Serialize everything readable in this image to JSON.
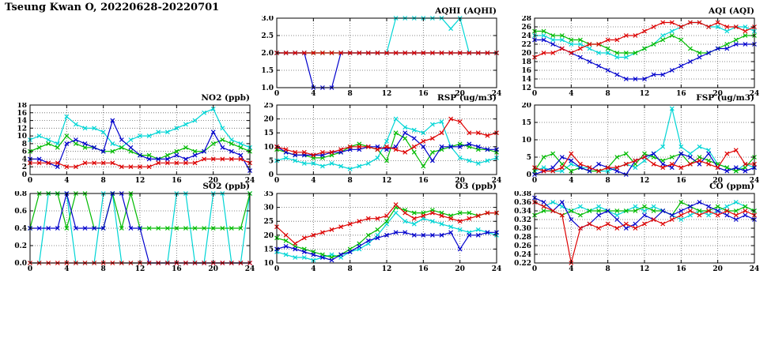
{
  "page": {
    "title": "Tseung Kwan O, 20220628-20220701"
  },
  "palette": {
    "red": "#dd0000",
    "green": "#00bb00",
    "blue": "#0000cc",
    "cyan": "#00d5d5"
  },
  "axes": {
    "xlim": [
      0,
      24
    ],
    "xticks": [
      0,
      4,
      8,
      12,
      16,
      20,
      24
    ],
    "xtick_labels": [
      "0",
      "4",
      "8",
      "12",
      "16",
      "20",
      "24"
    ]
  },
  "chart_data": [
    {
      "type": "line",
      "title": "AQHI (AQHI)",
      "ylim": [
        1.0,
        3.0
      ],
      "yticks": [
        1.0,
        1.5,
        2.0,
        2.5,
        3.0
      ],
      "ytick_labels": [
        "1.0",
        "1.5",
        "2.0",
        "2.5",
        "3.0"
      ],
      "series": [
        {
          "color": "cyan",
          "values": [
            2,
            2,
            2,
            2,
            2,
            2,
            2,
            2,
            2,
            2,
            2,
            2,
            2,
            3,
            3,
            3,
            3,
            3,
            3,
            2.7,
            3,
            2,
            2,
            2,
            2
          ]
        },
        {
          "color": "green",
          "values": [
            2,
            2,
            2,
            2,
            2,
            2,
            2,
            2,
            2,
            2,
            2,
            2,
            2,
            2,
            2,
            2,
            2,
            2,
            2,
            2,
            2,
            2,
            2,
            2,
            2
          ]
        },
        {
          "color": "blue",
          "values": [
            2,
            2,
            2,
            2,
            1,
            1,
            1,
            2,
            2,
            2,
            2,
            2,
            2,
            2,
            2,
            2,
            2,
            2,
            2,
            2,
            2,
            2,
            2,
            2,
            2
          ]
        },
        {
          "color": "red",
          "values": [
            2,
            2,
            2,
            2,
            2,
            2,
            2,
            2,
            2,
            2,
            2,
            2,
            2,
            2,
            2,
            2,
            2,
            2,
            2,
            2,
            2,
            2,
            2,
            2,
            2
          ]
        }
      ]
    },
    {
      "type": "line",
      "title": "AQI (AQI)",
      "ylim": [
        12,
        28
      ],
      "yticks": [
        12,
        14,
        16,
        18,
        20,
        22,
        24,
        26,
        28
      ],
      "ytick_labels": [
        "12",
        "14",
        "16",
        "18",
        "20",
        "22",
        "24",
        "26",
        "28"
      ],
      "series": [
        {
          "color": "cyan",
          "values": [
            24,
            24,
            23,
            23,
            22,
            22,
            21,
            20,
            20,
            19,
            19,
            20,
            21,
            22,
            24,
            25,
            26,
            27,
            27,
            26,
            26,
            25,
            26,
            26,
            25
          ]
        },
        {
          "color": "green",
          "values": [
            25,
            25,
            24,
            24,
            23,
            23,
            22,
            22,
            21,
            20,
            20,
            20,
            21,
            22,
            23,
            24,
            23,
            21,
            20,
            20,
            21,
            22,
            23,
            24,
            24
          ]
        },
        {
          "color": "blue",
          "values": [
            23,
            23,
            22,
            21,
            20,
            19,
            18,
            17,
            16,
            15,
            14,
            14,
            14,
            15,
            15,
            16,
            17,
            18,
            19,
            20,
            21,
            21,
            22,
            22,
            22
          ]
        },
        {
          "color": "red",
          "values": [
            19,
            20,
            20,
            21,
            20,
            21,
            22,
            22,
            23,
            23,
            24,
            24,
            25,
            26,
            27,
            27,
            26,
            27,
            27,
            26,
            27,
            26,
            26,
            25,
            26
          ]
        }
      ]
    },
    {
      "type": "line",
      "title": "NO2 (ppb)",
      "ylim": [
        0,
        18
      ],
      "yticks": [
        0,
        2,
        4,
        6,
        8,
        10,
        12,
        14,
        16,
        18
      ],
      "ytick_labels": [
        "0",
        "2",
        "4",
        "6",
        "8",
        "10",
        "12",
        "14",
        "16",
        "18"
      ],
      "series": [
        {
          "color": "cyan",
          "values": [
            9,
            10,
            9,
            8,
            15,
            13,
            12,
            12,
            11,
            8,
            7,
            9,
            10,
            10,
            11,
            11,
            12,
            13,
            14,
            16,
            17,
            12,
            9,
            8,
            7
          ]
        },
        {
          "color": "green",
          "values": [
            6,
            7,
            8,
            7,
            10,
            8,
            7,
            7,
            6,
            6,
            7,
            6,
            5,
            5,
            4,
            5,
            6,
            7,
            6,
            6,
            8,
            9,
            8,
            7,
            6
          ]
        },
        {
          "color": "blue",
          "values": [
            4,
            4,
            3,
            2,
            8,
            9,
            8,
            7,
            6,
            14,
            9,
            7,
            5,
            4,
            4,
            4,
            5,
            4,
            5,
            6,
            11,
            7,
            6,
            5,
            1
          ]
        },
        {
          "color": "red",
          "values": [
            3,
            3,
            3,
            3,
            2,
            2,
            3,
            3,
            3,
            3,
            2,
            2,
            2,
            2,
            3,
            3,
            3,
            3,
            3,
            4,
            4,
            4,
            4,
            4,
            3
          ]
        }
      ]
    },
    {
      "type": "line",
      "title": "RSP (ug/m3)",
      "ylim": [
        0,
        25
      ],
      "yticks": [
        0,
        5,
        10,
        15,
        20,
        25
      ],
      "ytick_labels": [
        "0",
        "5",
        "10",
        "15",
        "20",
        "25"
      ],
      "series": [
        {
          "color": "cyan",
          "values": [
            5,
            6,
            5,
            4,
            4,
            3,
            4,
            3,
            2,
            3,
            4,
            6,
            12,
            20,
            17,
            16,
            15,
            18,
            19,
            10,
            6,
            5,
            4,
            5,
            6
          ]
        },
        {
          "color": "green",
          "values": [
            9,
            8,
            7,
            7,
            6,
            6,
            7,
            8,
            10,
            11,
            10,
            9,
            5,
            15,
            13,
            8,
            3,
            8,
            9,
            10,
            11,
            10,
            9,
            9,
            8
          ]
        },
        {
          "color": "blue",
          "values": [
            10,
            8,
            7,
            7,
            7,
            7,
            8,
            8,
            9,
            9,
            10,
            10,
            9,
            10,
            15,
            13,
            10,
            5,
            10,
            10,
            10,
            11,
            10,
            9,
            9
          ]
        },
        {
          "color": "red",
          "values": [
            10,
            9,
            8,
            8,
            7,
            8,
            8,
            9,
            10,
            10,
            10,
            9,
            10,
            9,
            8,
            10,
            12,
            13,
            15,
            20,
            19,
            15,
            15,
            14,
            15
          ]
        }
      ]
    },
    {
      "type": "line",
      "title": "FSP (ug/m3)",
      "ylim": [
        0,
        20
      ],
      "yticks": [
        0,
        5,
        10,
        15,
        20
      ],
      "ytick_labels": [
        "0",
        "5",
        "10",
        "15",
        "20"
      ],
      "series": [
        {
          "color": "cyan",
          "values": [
            1,
            2,
            1,
            1,
            3,
            2,
            2,
            1,
            1,
            2,
            3,
            2,
            4,
            6,
            8,
            19,
            8,
            6,
            8,
            7,
            3,
            2,
            1,
            3,
            2
          ]
        },
        {
          "color": "green",
          "values": [
            1,
            5,
            6,
            3,
            1,
            2,
            1,
            1,
            2,
            5,
            6,
            3,
            6,
            5,
            4,
            5,
            6,
            3,
            5,
            4,
            3,
            2,
            1,
            2,
            5
          ]
        },
        {
          "color": "blue",
          "values": [
            0,
            1,
            2,
            5,
            4,
            2,
            1,
            3,
            2,
            1,
            0,
            4,
            5,
            6,
            3,
            2,
            6,
            5,
            3,
            6,
            2,
            1,
            2,
            1,
            2
          ]
        },
        {
          "color": "red",
          "values": [
            2,
            1,
            1,
            2,
            6,
            3,
            2,
            1,
            2,
            2,
            3,
            4,
            5,
            3,
            2,
            3,
            2,
            3,
            4,
            3,
            2,
            6,
            7,
            3,
            3
          ]
        }
      ]
    },
    {
      "type": "line",
      "title": "SO2 (ppb)",
      "ylim": [
        0.0,
        0.8
      ],
      "yticks": [
        0.0,
        0.2,
        0.4,
        0.6,
        0.8
      ],
      "ytick_labels": [
        "0.0",
        "0.2",
        "0.4",
        "0.6",
        "0.8"
      ],
      "series": [
        {
          "color": "cyan",
          "values": [
            0,
            0,
            0.8,
            0.8,
            0.8,
            0,
            0,
            0,
            0.8,
            0.8,
            0,
            0,
            0,
            0,
            0,
            0,
            0.8,
            0.8,
            0,
            0,
            0.8,
            0.8,
            0,
            0,
            0.8
          ]
        },
        {
          "color": "green",
          "values": [
            0.4,
            0.8,
            0.8,
            0.8,
            0.4,
            0.8,
            0.8,
            0.4,
            0.4,
            0.8,
            0.4,
            0.8,
            0.4,
            0.4,
            0.4,
            0.4,
            0.4,
            0.4,
            0.4,
            0.4,
            0.4,
            0.4,
            0.4,
            0.4,
            0.8
          ]
        },
        {
          "color": "blue",
          "values": [
            0.4,
            0.4,
            0.4,
            0.4,
            0.8,
            0.4,
            0.4,
            0.4,
            0.4,
            0.8,
            0.8,
            0.4,
            0.4,
            0,
            0,
            0,
            0,
            0,
            0,
            0,
            0,
            0,
            0,
            0,
            0
          ]
        },
        {
          "color": "red",
          "values": [
            0,
            0,
            0,
            0,
            0,
            0,
            0,
            0,
            0,
            0,
            0,
            0,
            0,
            0,
            0,
            0,
            0,
            0,
            0,
            0,
            0,
            0,
            0,
            0,
            0
          ]
        }
      ]
    },
    {
      "type": "line",
      "title": "O3 (ppb)",
      "ylim": [
        10,
        35
      ],
      "yticks": [
        10,
        15,
        20,
        25,
        30,
        35
      ],
      "ytick_labels": [
        "10",
        "15",
        "20",
        "25",
        "30",
        "35"
      ],
      "series": [
        {
          "color": "cyan",
          "values": [
            14,
            13,
            12,
            12,
            11,
            12,
            13,
            12,
            14,
            15,
            17,
            20,
            24,
            28,
            25,
            24,
            26,
            25,
            24,
            23,
            22,
            21,
            22,
            21,
            20
          ]
        },
        {
          "color": "green",
          "values": [
            19,
            18,
            16,
            15,
            14,
            13,
            12,
            13,
            15,
            17,
            20,
            22,
            25,
            30,
            29,
            28,
            28,
            29,
            28,
            27,
            28,
            28,
            27,
            28,
            28
          ]
        },
        {
          "color": "blue",
          "values": [
            15,
            16,
            15,
            14,
            13,
            12,
            11,
            13,
            14,
            16,
            18,
            19,
            20,
            21,
            21,
            20,
            20,
            20,
            20,
            21,
            15,
            20,
            20,
            21,
            21
          ]
        },
        {
          "color": "red",
          "values": [
            23,
            20,
            17,
            19,
            20,
            21,
            22,
            23,
            24,
            25,
            26,
            26,
            27,
            31,
            28,
            26,
            27,
            28,
            27,
            26,
            25,
            26,
            27,
            28,
            28
          ]
        }
      ]
    },
    {
      "type": "line",
      "title": "CO (ppm)",
      "ylim": [
        0.22,
        0.38
      ],
      "yticks": [
        0.22,
        0.24,
        0.26,
        0.28,
        0.3,
        0.32,
        0.34,
        0.36,
        0.38
      ],
      "ytick_labels": [
        "0.22",
        "0.24",
        "0.26",
        "0.28",
        "0.30",
        "0.32",
        "0.34",
        "0.36",
        "0.38"
      ],
      "series": [
        {
          "color": "cyan",
          "values": [
            0.36,
            0.35,
            0.36,
            0.35,
            0.34,
            0.35,
            0.34,
            0.35,
            0.34,
            0.33,
            0.34,
            0.35,
            0.34,
            0.35,
            0.34,
            0.33,
            0.32,
            0.33,
            0.34,
            0.33,
            0.34,
            0.35,
            0.36,
            0.35,
            0.34
          ]
        },
        {
          "color": "green",
          "values": [
            0.33,
            0.34,
            0.34,
            0.33,
            0.34,
            0.33,
            0.34,
            0.34,
            0.34,
            0.34,
            0.34,
            0.34,
            0.35,
            0.34,
            0.34,
            0.33,
            0.36,
            0.35,
            0.34,
            0.34,
            0.35,
            0.34,
            0.34,
            0.35,
            0.34
          ]
        },
        {
          "color": "blue",
          "values": [
            0.37,
            0.36,
            0.34,
            0.36,
            0.32,
            0.3,
            0.31,
            0.33,
            0.34,
            0.32,
            0.3,
            0.31,
            0.33,
            0.32,
            0.34,
            0.33,
            0.34,
            0.35,
            0.36,
            0.35,
            0.34,
            0.33,
            0.32,
            0.33,
            0.32
          ]
        },
        {
          "color": "red",
          "values": [
            0.36,
            0.35,
            0.34,
            0.33,
            0.22,
            0.3,
            0.31,
            0.3,
            0.31,
            0.3,
            0.31,
            0.3,
            0.31,
            0.32,
            0.31,
            0.32,
            0.33,
            0.34,
            0.33,
            0.34,
            0.33,
            0.34,
            0.33,
            0.34,
            0.33
          ]
        }
      ]
    }
  ]
}
